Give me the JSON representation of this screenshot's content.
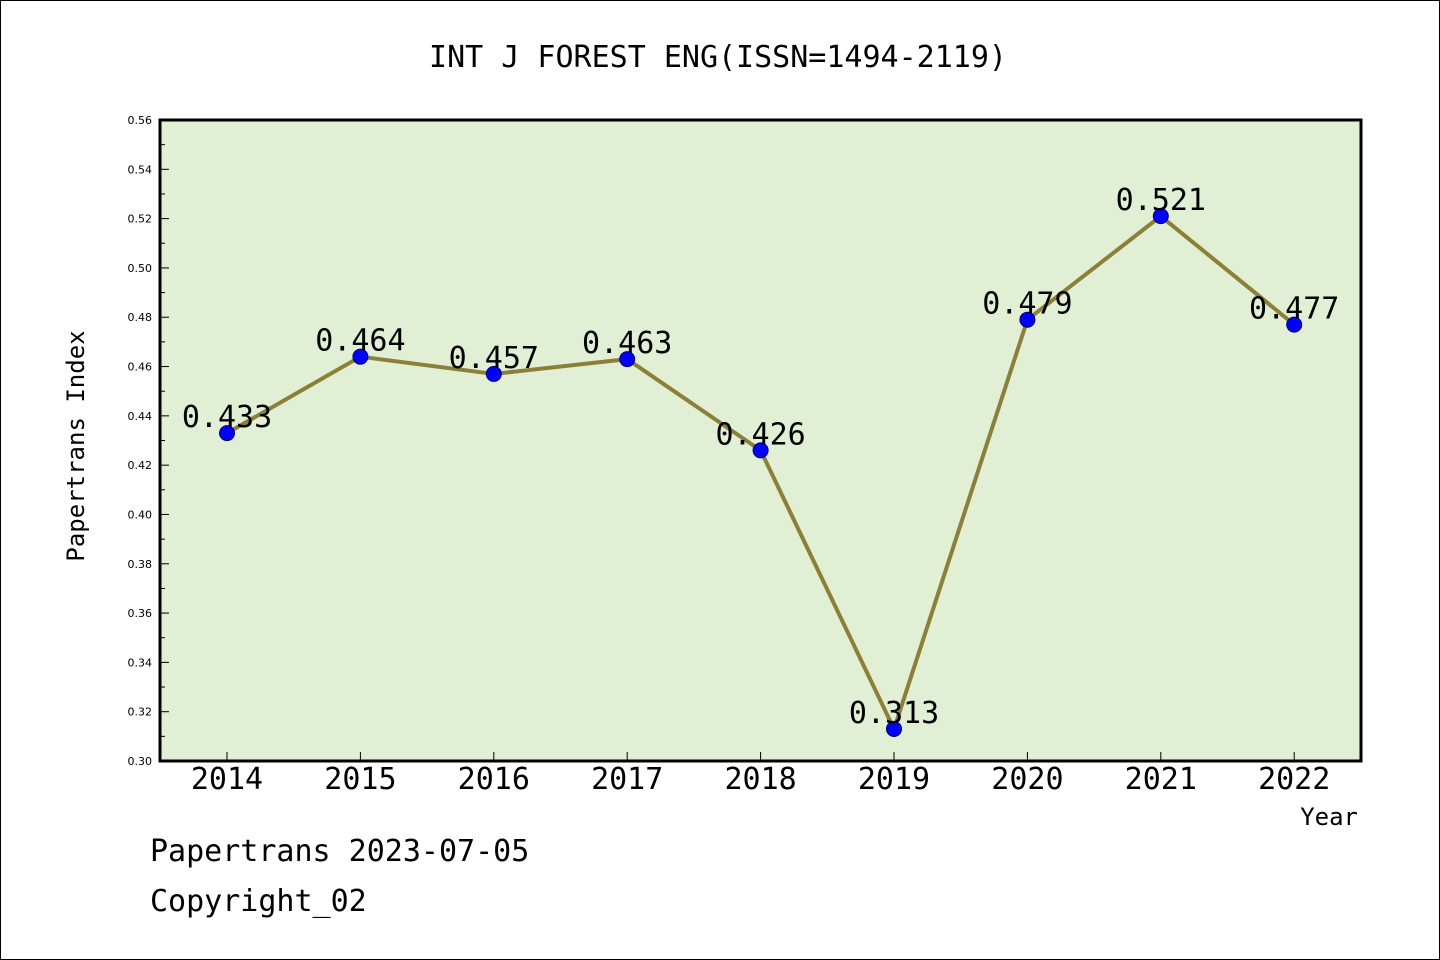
{
  "chart_data": {
    "type": "line",
    "title": "INT J FOREST ENG(ISSN=1494-2119)",
    "xlabel": "Year",
    "ylabel": "Papertrans Index",
    "categories": [
      "2014",
      "2015",
      "2016",
      "2017",
      "2018",
      "2019",
      "2020",
      "2021",
      "2022"
    ],
    "series": [
      {
        "values": [
          0.433,
          0.464,
          0.457,
          0.463,
          0.426,
          0.313,
          0.479,
          0.521,
          0.477
        ],
        "data_labels": [
          "0.433",
          "0.464",
          "0.457",
          "0.463",
          "0.426",
          "0.313",
          "0.479",
          "0.521",
          "0.477"
        ]
      }
    ],
    "ylim": [
      0.3,
      0.56
    ],
    "yticks": [
      "0.30",
      "0.32",
      "0.34",
      "0.36",
      "0.38",
      "0.40",
      "0.42",
      "0.44",
      "0.46",
      "0.48",
      "0.50",
      "0.52",
      "0.54",
      "0.56"
    ],
    "grid": false,
    "plot_background": "#e1efd4",
    "line_color": "#8b8036",
    "marker_color": "#0000ff"
  },
  "footer": {
    "line1": "Papertrans 2023-07-05",
    "line2": "Copyright_02"
  }
}
